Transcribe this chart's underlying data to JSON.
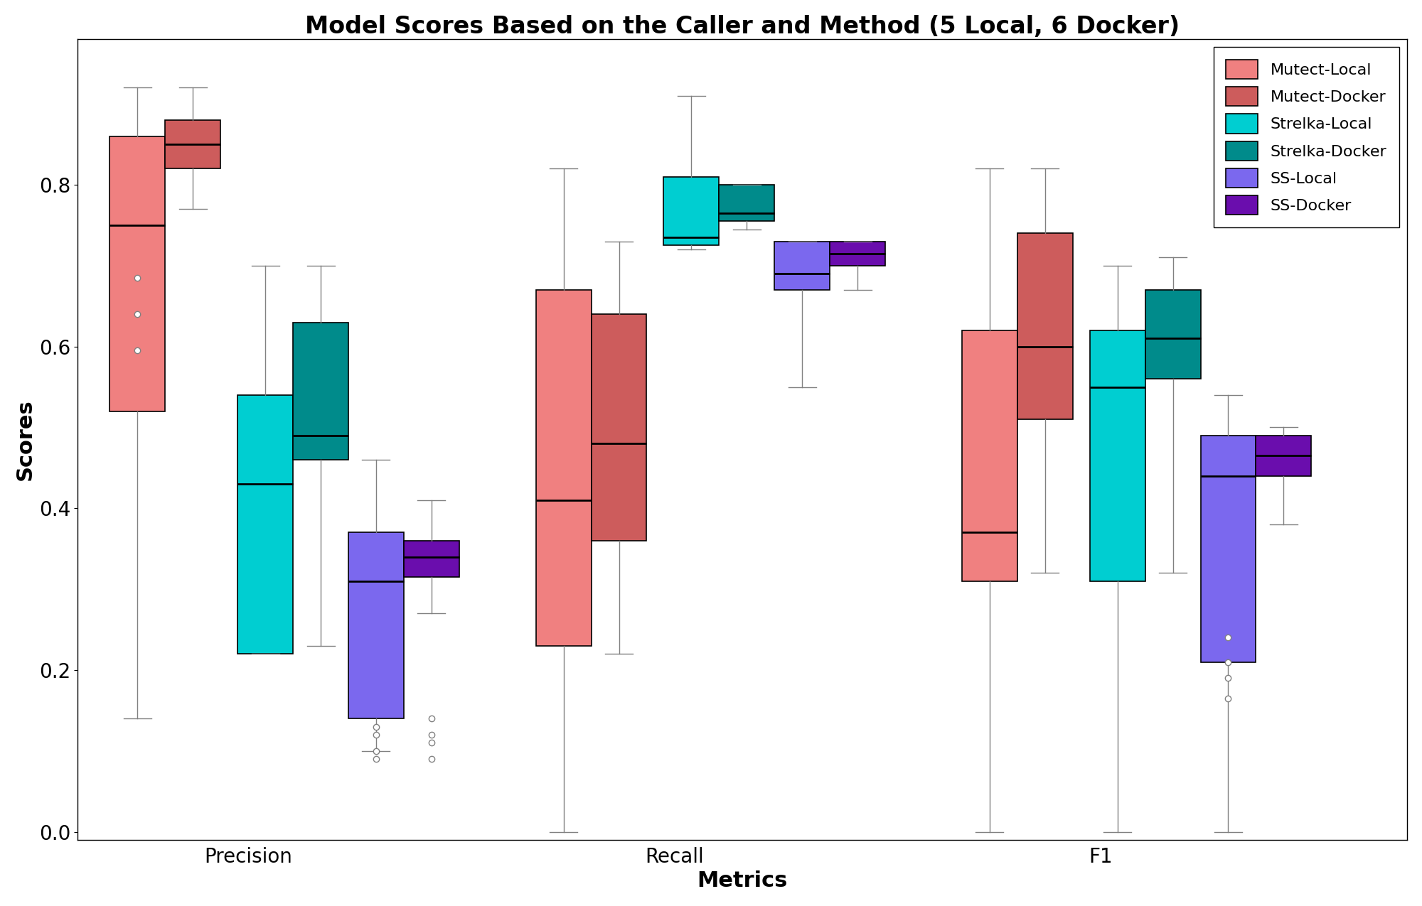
{
  "title": "Model Scores Based on the Caller and Method (5 Local, 6 Docker)",
  "xlabel": "Metrics",
  "ylabel": "Scores",
  "categories": [
    "Precision",
    "Recall",
    "F1"
  ],
  "series": [
    {
      "label": "Mutect-Local",
      "color": "#F08080",
      "precision": {
        "q1": 0.52,
        "median": 0.75,
        "q3": 0.86,
        "whislo": 0.14,
        "whishi": 0.92,
        "fliers": [
          0.685,
          0.64,
          0.595
        ]
      },
      "recall": {
        "q1": 0.23,
        "median": 0.41,
        "q3": 0.67,
        "whislo": 0.0,
        "whishi": 0.82,
        "fliers": []
      },
      "f1": {
        "q1": 0.31,
        "median": 0.37,
        "q3": 0.62,
        "whislo": 0.0,
        "whishi": 0.82,
        "fliers": []
      }
    },
    {
      "label": "Mutect-Docker",
      "color": "#CD5C5C",
      "precision": {
        "q1": 0.82,
        "median": 0.85,
        "q3": 0.88,
        "whislo": 0.77,
        "whishi": 0.92,
        "fliers": []
      },
      "recall": {
        "q1": 0.36,
        "median": 0.48,
        "q3": 0.64,
        "whislo": 0.22,
        "whishi": 0.73,
        "fliers": []
      },
      "f1": {
        "q1": 0.51,
        "median": 0.6,
        "q3": 0.74,
        "whislo": 0.32,
        "whishi": 0.82,
        "fliers": []
      }
    },
    {
      "label": "Strelka-Local",
      "color": "#00CED1",
      "precision": {
        "q1": 0.22,
        "median": 0.43,
        "q3": 0.54,
        "whislo": 0.22,
        "whishi": 0.7,
        "fliers": []
      },
      "recall": {
        "q1": 0.725,
        "median": 0.735,
        "q3": 0.81,
        "whislo": 0.72,
        "whishi": 0.91,
        "fliers": []
      },
      "f1": {
        "q1": 0.31,
        "median": 0.55,
        "q3": 0.62,
        "whislo": 0.0,
        "whishi": 0.7,
        "fliers": []
      }
    },
    {
      "label": "Strelka-Docker",
      "color": "#008B8B",
      "precision": {
        "q1": 0.46,
        "median": 0.49,
        "q3": 0.63,
        "whislo": 0.23,
        "whishi": 0.7,
        "fliers": []
      },
      "recall": {
        "q1": 0.755,
        "median": 0.765,
        "q3": 0.8,
        "whislo": 0.745,
        "whishi": 0.8,
        "fliers": []
      },
      "f1": {
        "q1": 0.56,
        "median": 0.61,
        "q3": 0.67,
        "whislo": 0.32,
        "whishi": 0.71,
        "fliers": []
      }
    },
    {
      "label": "SS-Local",
      "color": "#7B68EE",
      "precision": {
        "q1": 0.14,
        "median": 0.31,
        "q3": 0.37,
        "whislo": 0.1,
        "whishi": 0.46,
        "fliers": [
          0.13,
          0.12,
          0.1,
          0.09
        ]
      },
      "recall": {
        "q1": 0.67,
        "median": 0.69,
        "q3": 0.73,
        "whislo": 0.55,
        "whishi": 0.73,
        "fliers": []
      },
      "f1": {
        "q1": 0.21,
        "median": 0.44,
        "q3": 0.49,
        "whislo": 0.0,
        "whishi": 0.54,
        "fliers": [
          0.24,
          0.21,
          0.19,
          0.165
        ]
      }
    },
    {
      "label": "SS-Docker",
      "color": "#6A0DAD",
      "precision": {
        "q1": 0.315,
        "median": 0.34,
        "q3": 0.36,
        "whislo": 0.27,
        "whishi": 0.41,
        "fliers": [
          0.14,
          0.12,
          0.11,
          0.09
        ]
      },
      "recall": {
        "q1": 0.7,
        "median": 0.715,
        "q3": 0.73,
        "whislo": 0.67,
        "whishi": 0.73,
        "fliers": []
      },
      "f1": {
        "q1": 0.44,
        "median": 0.465,
        "q3": 0.49,
        "whislo": 0.38,
        "whishi": 0.5,
        "fliers": []
      }
    }
  ],
  "ylim": [
    -0.01,
    0.98
  ],
  "yticks": [
    0.0,
    0.2,
    0.4,
    0.6,
    0.8
  ],
  "group_centers": [
    1.0,
    2.0,
    3.0
  ],
  "box_width": 0.13,
  "group_offsets": [
    -0.26,
    -0.13,
    0.04,
    0.17,
    0.3,
    0.43
  ],
  "whisker_color": "gray",
  "median_color": "black",
  "flier_color": "gray"
}
